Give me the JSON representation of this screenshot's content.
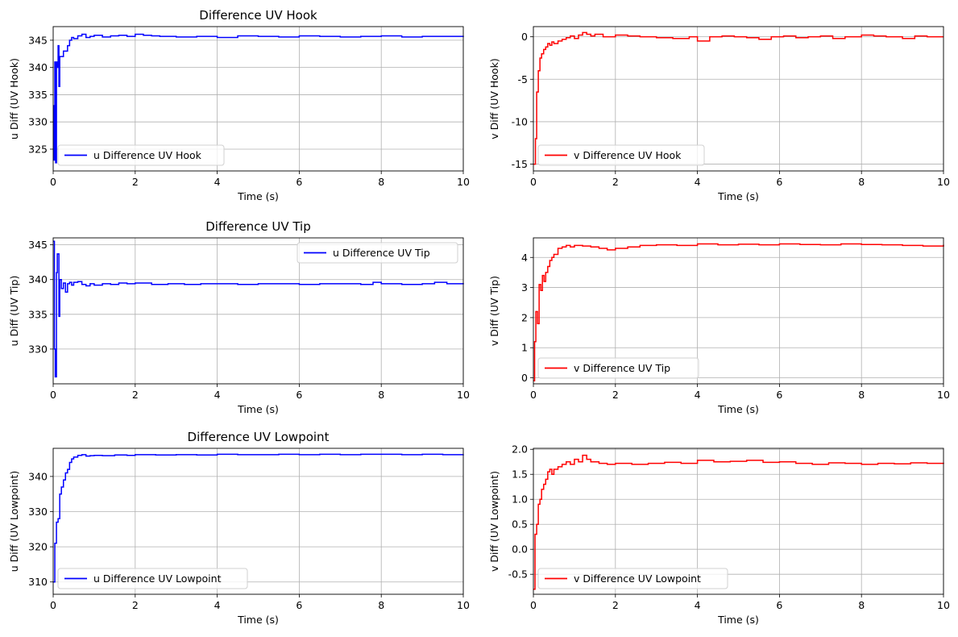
{
  "chart_data": [
    {
      "type": "line",
      "title": "Difference UV Hook",
      "xlabel": "Time (s)",
      "ylabel": "u Diff (UV Hook)",
      "xlim": [
        0,
        10
      ],
      "ylim": [
        321,
        347.5
      ],
      "xticks": [
        0,
        2,
        4,
        6,
        8,
        10
      ],
      "yticks": [
        325,
        330,
        335,
        340,
        345
      ],
      "grid": true,
      "legend_position": "lower-left",
      "series": [
        {
          "name": "u Difference UV Hook",
          "color": "#0000ff",
          "step": true,
          "x": [
            0,
            0.02,
            0.04,
            0.06,
            0.08,
            0.1,
            0.12,
            0.14,
            0.16,
            0.2,
            0.25,
            0.3,
            0.35,
            0.4,
            0.45,
            0.5,
            0.6,
            0.7,
            0.8,
            0.9,
            1.0,
            1.2,
            1.4,
            1.6,
            1.8,
            2.0,
            2.2,
            2.4,
            2.6,
            3.0,
            3.5,
            4.0,
            4.5,
            5.0,
            5.5,
            6.0,
            6.5,
            7.0,
            7.5,
            8.0,
            8.5,
            9.0,
            9.5,
            10.0
          ],
          "y": [
            333,
            323,
            341,
            322.5,
            341,
            340,
            344,
            336.5,
            342,
            342,
            343,
            343,
            344,
            345,
            345.5,
            345.3,
            345.8,
            346.1,
            345.5,
            345.7,
            345.9,
            345.6,
            345.8,
            345.9,
            345.7,
            346.1,
            345.9,
            345.8,
            345.7,
            345.6,
            345.7,
            345.5,
            345.8,
            345.7,
            345.6,
            345.8,
            345.7,
            345.6,
            345.7,
            345.8,
            345.6,
            345.7,
            345.7,
            345.8
          ]
        }
      ]
    },
    {
      "type": "line",
      "title": "",
      "xlabel": "Time (s)",
      "ylabel": "v Diff (UV Hook)",
      "xlim": [
        0,
        10
      ],
      "ylim": [
        -15.8,
        1.2
      ],
      "xticks": [
        0,
        2,
        4,
        6,
        8,
        10
      ],
      "yticks": [
        -15,
        -10,
        -5,
        0
      ],
      "grid": true,
      "legend_position": "lower-left",
      "series": [
        {
          "name": "v Difference UV Hook",
          "color": "#ff0000",
          "step": true,
          "x": [
            0,
            0.05,
            0.08,
            0.12,
            0.16,
            0.2,
            0.25,
            0.3,
            0.35,
            0.4,
            0.45,
            0.5,
            0.6,
            0.7,
            0.8,
            0.9,
            1.0,
            1.1,
            1.2,
            1.3,
            1.4,
            1.5,
            1.7,
            2.0,
            2.3,
            2.6,
            3.0,
            3.4,
            3.8,
            4.0,
            4.3,
            4.6,
            4.9,
            5.2,
            5.5,
            5.8,
            6.1,
            6.4,
            6.7,
            7.0,
            7.3,
            7.6,
            8.0,
            8.3,
            8.6,
            9.0,
            9.3,
            9.6,
            10.0
          ],
          "y": [
            -15,
            -12,
            -6.5,
            -4,
            -2.5,
            -2,
            -1.5,
            -1.2,
            -0.8,
            -1,
            -0.6,
            -0.8,
            -0.5,
            -0.3,
            -0.1,
            0.1,
            -0.2,
            0.2,
            0.5,
            0.3,
            0.1,
            0.3,
            0.0,
            0.2,
            0.1,
            0.0,
            -0.1,
            -0.2,
            0.0,
            -0.5,
            0.0,
            0.1,
            0.0,
            -0.1,
            -0.3,
            0.0,
            0.1,
            -0.1,
            0.0,
            0.1,
            -0.2,
            0.0,
            0.2,
            0.1,
            0.0,
            -0.2,
            0.1,
            0.0,
            0.0
          ]
        }
      ]
    },
    {
      "type": "line",
      "title": "Difference UV Tip",
      "xlabel": "Time (s)",
      "ylabel": "u Diff (UV Tip)",
      "xlim": [
        0,
        10
      ],
      "ylim": [
        325,
        346
      ],
      "xticks": [
        0,
        2,
        4,
        6,
        8,
        10
      ],
      "yticks": [
        330,
        335,
        340,
        345
      ],
      "grid": true,
      "legend_position": "upper-right",
      "series": [
        {
          "name": "u Difference UV Tip",
          "color": "#0000ff",
          "step": true,
          "x": [
            0,
            0.03,
            0.05,
            0.08,
            0.1,
            0.14,
            0.16,
            0.2,
            0.25,
            0.3,
            0.35,
            0.4,
            0.45,
            0.5,
            0.6,
            0.7,
            0.8,
            0.9,
            1.0,
            1.2,
            1.4,
            1.6,
            1.8,
            2.0,
            2.4,
            2.8,
            3.2,
            3.6,
            4.0,
            4.5,
            5.0,
            5.5,
            6.0,
            6.5,
            7.0,
            7.5,
            7.8,
            8.0,
            8.5,
            9.0,
            9.3,
            9.6,
            10.0
          ],
          "y": [
            345.5,
            330,
            326,
            341,
            343.7,
            334.7,
            340,
            338.7,
            339.5,
            338.2,
            339.4,
            339.6,
            339.2,
            339.6,
            339.7,
            339.3,
            339.1,
            339.4,
            339.2,
            339.4,
            339.3,
            339.5,
            339.4,
            339.5,
            339.3,
            339.4,
            339.3,
            339.4,
            339.4,
            339.3,
            339.4,
            339.4,
            339.3,
            339.4,
            339.4,
            339.3,
            339.6,
            339.4,
            339.3,
            339.4,
            339.6,
            339.4,
            339.5
          ]
        }
      ]
    },
    {
      "type": "line",
      "title": "",
      "xlabel": "Time (s)",
      "ylabel": "v Diff (UV Tip)",
      "xlim": [
        0,
        10
      ],
      "ylim": [
        -0.2,
        4.65
      ],
      "xticks": [
        0,
        2,
        4,
        6,
        8,
        10
      ],
      "yticks": [
        0,
        1,
        2,
        3,
        4
      ],
      "grid": true,
      "legend_position": "lower-left",
      "series": [
        {
          "name": "v Difference UV Tip",
          "color": "#ff0000",
          "step": true,
          "x": [
            0,
            0.03,
            0.06,
            0.1,
            0.14,
            0.18,
            0.22,
            0.26,
            0.3,
            0.35,
            0.4,
            0.45,
            0.5,
            0.6,
            0.7,
            0.8,
            0.9,
            1.0,
            1.2,
            1.4,
            1.6,
            1.8,
            2.0,
            2.3,
            2.6,
            3.0,
            3.5,
            4.0,
            4.5,
            5.0,
            5.5,
            6.0,
            6.5,
            7.0,
            7.5,
            8.0,
            8.5,
            9.0,
            9.5,
            10.0
          ],
          "y": [
            -0.1,
            1.2,
            2.2,
            1.8,
            3.1,
            2.9,
            3.4,
            3.2,
            3.5,
            3.7,
            3.9,
            4.0,
            4.1,
            4.3,
            4.35,
            4.4,
            4.35,
            4.4,
            4.38,
            4.35,
            4.3,
            4.25,
            4.3,
            4.35,
            4.4,
            4.42,
            4.4,
            4.45,
            4.42,
            4.44,
            4.42,
            4.45,
            4.43,
            4.42,
            4.45,
            4.43,
            4.42,
            4.4,
            4.38,
            4.42
          ]
        }
      ]
    },
    {
      "type": "line",
      "title": "Difference UV Lowpoint",
      "xlabel": "Time (s)",
      "ylabel": "u Diff (UV Lowpoint)",
      "xlim": [
        0,
        10
      ],
      "ylim": [
        306.5,
        348
      ],
      "xticks": [
        0,
        2,
        4,
        6,
        8,
        10
      ],
      "yticks": [
        310,
        320,
        330,
        340
      ],
      "grid": true,
      "legend_position": "lower-left",
      "series": [
        {
          "name": "u Difference UV Lowpoint",
          "color": "#0000ff",
          "step": true,
          "x": [
            0,
            0.04,
            0.08,
            0.12,
            0.16,
            0.2,
            0.25,
            0.3,
            0.35,
            0.4,
            0.45,
            0.5,
            0.6,
            0.7,
            0.8,
            0.9,
            1.0,
            1.2,
            1.5,
            1.8,
            2.0,
            2.5,
            3.0,
            3.5,
            4.0,
            4.5,
            5.0,
            5.5,
            6.0,
            6.5,
            7.0,
            7.5,
            8.0,
            8.5,
            9.0,
            9.5,
            10.0
          ],
          "y": [
            310,
            321,
            327,
            328,
            335,
            337,
            339,
            341,
            342,
            344,
            345,
            345.5,
            346,
            346.2,
            345.8,
            345.9,
            346,
            345.9,
            346.1,
            346,
            346.2,
            346.1,
            346.2,
            346.1,
            346.3,
            346.2,
            346.2,
            346.3,
            346.2,
            346.3,
            346.2,
            346.3,
            346.3,
            346.2,
            346.3,
            346.2,
            346.3
          ]
        }
      ]
    },
    {
      "type": "line",
      "title": "",
      "xlabel": "Time (s)",
      "ylabel": "v Diff (UV Lowpoint)",
      "xlim": [
        0,
        10
      ],
      "ylim": [
        -0.9,
        2.02
      ],
      "xticks": [
        0,
        2,
        4,
        6,
        8,
        10
      ],
      "yticks": [
        -0.5,
        0.0,
        0.5,
        1.0,
        1.5,
        2.0
      ],
      "grid": true,
      "legend_position": "lower-left",
      "series": [
        {
          "name": "v Difference UV Lowpoint",
          "color": "#ff0000",
          "step": true,
          "x": [
            0,
            0.04,
            0.08,
            0.12,
            0.16,
            0.2,
            0.25,
            0.3,
            0.35,
            0.4,
            0.45,
            0.5,
            0.6,
            0.7,
            0.8,
            0.9,
            1.0,
            1.1,
            1.2,
            1.3,
            1.4,
            1.6,
            1.8,
            2.0,
            2.4,
            2.8,
            3.2,
            3.6,
            4.0,
            4.4,
            4.8,
            5.2,
            5.6,
            6.0,
            6.4,
            6.8,
            7.2,
            7.6,
            8.0,
            8.4,
            8.8,
            9.2,
            9.6,
            10.0
          ],
          "y": [
            -0.8,
            0.3,
            0.5,
            0.9,
            1.0,
            1.2,
            1.3,
            1.4,
            1.55,
            1.6,
            1.5,
            1.6,
            1.65,
            1.7,
            1.75,
            1.7,
            1.8,
            1.75,
            1.88,
            1.8,
            1.75,
            1.72,
            1.7,
            1.72,
            1.7,
            1.72,
            1.74,
            1.72,
            1.78,
            1.75,
            1.76,
            1.78,
            1.74,
            1.75,
            1.72,
            1.7,
            1.73,
            1.72,
            1.7,
            1.72,
            1.71,
            1.73,
            1.72,
            1.71
          ]
        }
      ]
    }
  ]
}
